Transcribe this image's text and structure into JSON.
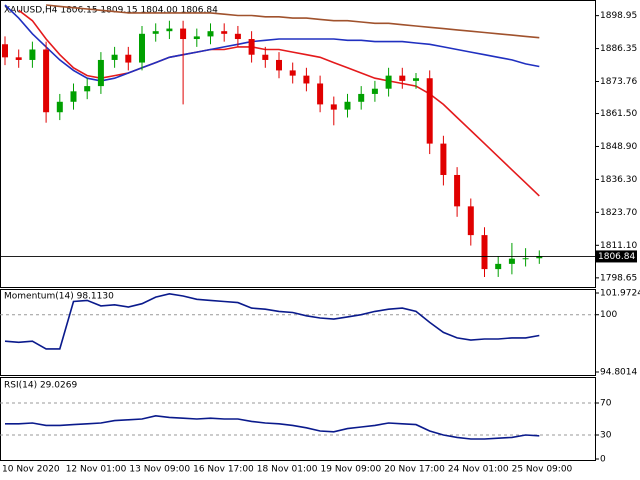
{
  "chart_data": [
    {
      "type": "candlestick",
      "title": "XAUUSD,H4  1806.15 1809.15 1804.00 1806.84",
      "up_color": "#00a000",
      "down_color": "#e00000",
      "open": [
        1888,
        1883,
        1882,
        1886,
        1862,
        1866,
        1870,
        1872,
        1882,
        1884,
        1881,
        1892,
        1893,
        1894,
        1890,
        1891,
        1893,
        1892,
        1890,
        1884,
        1882,
        1878,
        1876,
        1873,
        1865,
        1863,
        1866,
        1869,
        1871,
        1876,
        1874,
        1875,
        1850,
        1838,
        1826,
        1815,
        1802,
        1804,
        1806,
        1806.15
      ],
      "high": [
        1891,
        1886,
        1889,
        1889,
        1869,
        1873,
        1875,
        1885,
        1887,
        1887,
        1895,
        1896,
        1897,
        1897,
        1894,
        1896,
        1896,
        1895,
        1893,
        1887,
        1885,
        1881,
        1879,
        1876,
        1868,
        1869,
        1872,
        1874,
        1879,
        1879,
        1877,
        1878,
        1853,
        1841,
        1829,
        1818,
        1807,
        1812,
        1810,
        1809.15
      ],
      "low": [
        1880,
        1879,
        1879,
        1858,
        1859,
        1863,
        1867,
        1869,
        1879,
        1878,
        1878,
        1889,
        1890,
        1865,
        1887,
        1888,
        1889,
        1887,
        1881,
        1879,
        1875,
        1873,
        1870,
        1862,
        1857,
        1860,
        1863,
        1866,
        1868,
        1871,
        1871,
        1846,
        1834,
        1822,
        1811,
        1799,
        1799,
        1800,
        1803,
        1804
      ],
      "close": [
        1883,
        1882,
        1886,
        1862,
        1866,
        1870,
        1872,
        1882,
        1884,
        1881,
        1892,
        1893,
        1894,
        1890,
        1891,
        1893,
        1892,
        1890,
        1884,
        1882,
        1878,
        1876,
        1873,
        1865,
        1863,
        1866,
        1869,
        1871,
        1876,
        1874,
        1875,
        1850,
        1838,
        1826,
        1815,
        1802,
        1804,
        1806,
        1806.15,
        1806.84
      ],
      "series": [
        {
          "color": "#e41a1c",
          "values": [
            null,
            1901,
            1897,
            1890,
            1884,
            1879,
            1876,
            1875,
            1876,
            1877,
            1879,
            1881,
            1883,
            1884,
            1885,
            1886,
            1886,
            1887,
            1887,
            1886,
            1886,
            1885,
            1884,
            1883,
            1881,
            1879,
            1877,
            1875,
            1874,
            1873,
            1872,
            1869,
            1865,
            1860,
            1855,
            1850,
            1845,
            1840,
            1835,
            1830
          ]
        },
        {
          "color": "#2030c0",
          "values": [
            1903,
            1898,
            1892,
            1887,
            1882,
            1878,
            1875,
            1874,
            1875,
            1877,
            1879,
            1881,
            1883,
            1884,
            1885,
            1886,
            1887,
            1888,
            1889,
            1889.5,
            1890,
            1890,
            1890,
            1890,
            1890,
            1889.5,
            1889.5,
            1889,
            1889,
            1889,
            1888.5,
            1888,
            1887,
            1886,
            1885,
            1884,
            1883,
            1882,
            1880.5,
            1879.5
          ]
        },
        {
          "color": "#a0522d",
          "values": [
            null,
            null,
            null,
            1903,
            1902.5,
            1902,
            1901.5,
            1901,
            1900.5,
            1900,
            1900,
            1900,
            1900,
            1900,
            1900,
            1900,
            1899.5,
            1899,
            1899,
            1898.5,
            1898.5,
            1898,
            1898,
            1897.5,
            1897,
            1897,
            1896.5,
            1896,
            1896,
            1895.5,
            1895,
            1894.5,
            1894,
            1893.5,
            1893,
            1892.5,
            1892,
            1891.5,
            1891,
            1890.5
          ]
        }
      ],
      "ylim": [
        1796.3,
        1903.4
      ],
      "yticks": [
        1798.65,
        {
          "value": 1811.1,
          "label": "1811.10"
        },
        {
          "value": 1823.7,
          "label": "1823.70"
        },
        {
          "value": 1836.3,
          "label": "1836.30"
        },
        {
          "value": 1848.9,
          "label": "1848.90"
        },
        {
          "value": 1861.5,
          "label": "1861.50"
        },
        1873.76,
        1886.35,
        1898.95
      ],
      "x_labels": [
        "10 Nov 2020",
        "12 Nov 01:00",
        "13 Nov 09:00",
        "16 Nov 17:00",
        "18 Nov 01:00",
        "19 Nov 09:00",
        "20 Nov 17:00",
        "24 Nov 01:00",
        "25 Nov 09:00"
      ]
    },
    {
      "type": "line",
      "title": "Momentum(14) 98.1130",
      "color": "#0a1a8c",
      "values": [
        97.6,
        97.5,
        97.6,
        96.9,
        96.9,
        101.2,
        101.3,
        100.8,
        100.9,
        100.7,
        101.0,
        101.6,
        101.9,
        101.7,
        101.4,
        101.3,
        101.2,
        101.1,
        100.6,
        100.5,
        100.3,
        100.2,
        99.9,
        99.7,
        99.6,
        99.8,
        100.0,
        100.3,
        100.5,
        100.6,
        100.3,
        99.3,
        98.4,
        97.9,
        97.7,
        97.8,
        97.8,
        97.9,
        97.9,
        98.113
      ],
      "ylim": [
        94.8014,
        101.9724
      ],
      "yticks": [
        94.8014,
        100,
        101.9724
      ],
      "levels": [
        100
      ]
    },
    {
      "type": "line",
      "title": "RSI(14) 29.0269",
      "color": "#0a1a8c",
      "values": [
        44,
        44,
        45,
        42,
        42,
        43,
        44,
        45,
        48,
        49,
        50,
        54,
        52,
        51,
        50,
        51,
        50,
        50,
        47,
        45,
        44,
        42,
        39,
        35,
        34,
        38,
        40,
        42,
        45,
        44,
        43,
        35,
        30,
        27,
        25,
        25,
        26,
        27,
        30,
        29.0269
      ],
      "ylim": [
        0,
        100
      ],
      "yticks": [
        0,
        30,
        70
      ],
      "levels": [
        30,
        70
      ]
    }
  ]
}
